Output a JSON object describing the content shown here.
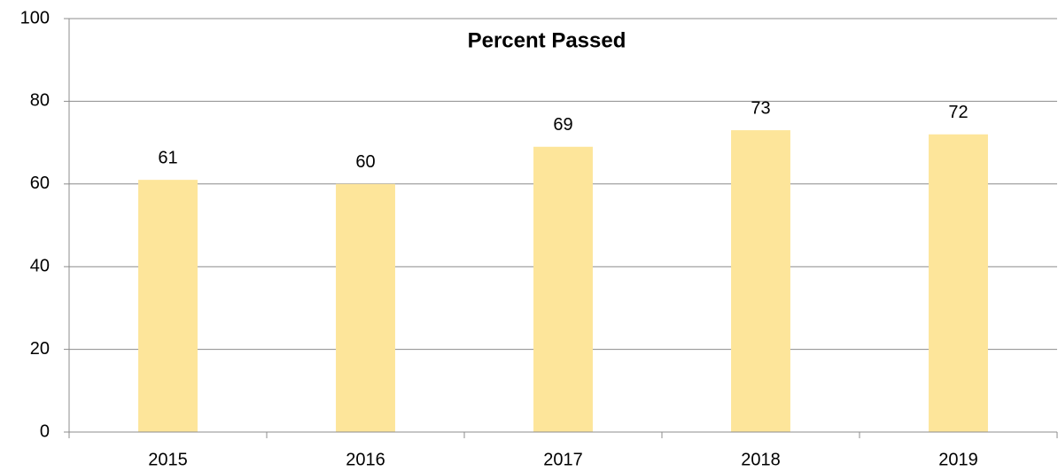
{
  "chart_data": {
    "type": "bar",
    "title": "Percent Passed",
    "categories": [
      "2015",
      "2016",
      "2017",
      "2018",
      "2019"
    ],
    "values": [
      61,
      60,
      69,
      73,
      72
    ],
    "color": "#fde59a",
    "ylim": [
      0,
      100
    ],
    "yticks": [
      0,
      20,
      40,
      60,
      80,
      100
    ],
    "grid": true,
    "data_labels": true
  }
}
